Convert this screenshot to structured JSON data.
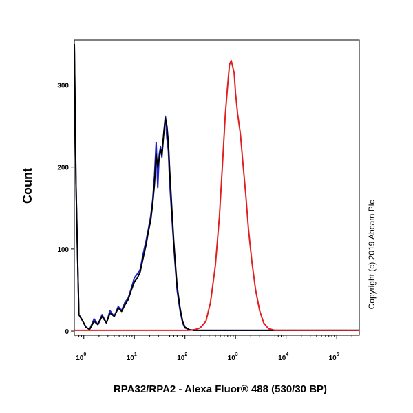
{
  "chart_data": {
    "type": "area",
    "title": "",
    "xlabel": "RPA32/RPA2 - Alexa Fluor® 488 (530/30 BP)",
    "ylabel": "Count",
    "x_scale": "log",
    "xlim": [
      0.65,
      280000
    ],
    "ylim": [
      -5,
      355
    ],
    "x_ticks": [
      {
        "base": "10",
        "exp": "0"
      },
      {
        "base": "10",
        "exp": "1"
      },
      {
        "base": "10",
        "exp": "2"
      },
      {
        "base": "10",
        "exp": "3"
      },
      {
        "base": "10",
        "exp": "4"
      },
      {
        "base": "10",
        "exp": "5"
      }
    ],
    "y_ticks": [
      "0",
      "100",
      "200",
      "300"
    ],
    "y_tick_values": [
      0,
      100,
      200,
      300
    ],
    "grid": false,
    "legend": null,
    "annotations": [
      "Copyright (c) 2019 Abcam Plc"
    ],
    "series": [
      {
        "color": "#1f22c8",
        "x": [
          0.65,
          0.7,
          0.8,
          0.9,
          1.1,
          1.3,
          1.6,
          1.9,
          2.3,
          2.8,
          3.3,
          4.0,
          4.8,
          5.6,
          6.5,
          7.5,
          8.5,
          10,
          11.5,
          13,
          15,
          17,
          19,
          21,
          23,
          25,
          27,
          29,
          31,
          33,
          35,
          38,
          41,
          44,
          47,
          50,
          55,
          60,
          65,
          70,
          80,
          90,
          100,
          120,
          150,
          200,
          500,
          2000,
          280000
        ],
        "y": [
          350,
          180,
          20,
          15,
          5,
          2,
          15,
          8,
          20,
          10,
          25,
          18,
          30,
          25,
          35,
          40,
          50,
          65,
          70,
          75,
          95,
          110,
          125,
          140,
          160,
          190,
          230,
          175,
          215,
          225,
          212,
          240,
          262,
          235,
          220,
          180,
          140,
          105,
          75,
          50,
          25,
          10,
          4,
          2,
          1,
          1,
          1,
          1,
          1
        ]
      },
      {
        "color": "#000000",
        "x": [
          0.65,
          0.7,
          0.8,
          0.9,
          1.1,
          1.3,
          1.6,
          1.9,
          2.3,
          2.8,
          3.3,
          4.0,
          4.8,
          5.6,
          6.5,
          7.5,
          8.5,
          10,
          11.5,
          13,
          15,
          17,
          19,
          21,
          23,
          25,
          27,
          29,
          31,
          33,
          35,
          38,
          41,
          44,
          47,
          50,
          55,
          60,
          65,
          70,
          80,
          90,
          100,
          120,
          150,
          200,
          500,
          2000,
          280000
        ],
        "y": [
          350,
          180,
          20,
          15,
          5,
          2,
          12,
          8,
          18,
          10,
          22,
          18,
          28,
          24,
          32,
          38,
          48,
          60,
          65,
          72,
          90,
          105,
          122,
          135,
          155,
          180,
          215,
          200,
          210,
          222,
          215,
          240,
          260,
          250,
          230,
          195,
          150,
          110,
          80,
          55,
          28,
          12,
          5,
          2,
          1,
          1,
          1,
          1,
          1
        ]
      },
      {
        "color": "#e02020",
        "x": [
          0.65,
          80,
          120,
          160,
          200,
          260,
          320,
          400,
          480,
          560,
          630,
          700,
          760,
          820,
          880,
          940,
          1000,
          1100,
          1250,
          1400,
          1600,
          1800,
          2100,
          2500,
          3000,
          3600,
          4500,
          6000,
          280000
        ],
        "y": [
          1,
          1,
          1,
          2,
          4,
          12,
          35,
          80,
          140,
          210,
          265,
          300,
          325,
          330,
          322,
          315,
          290,
          265,
          240,
          205,
          165,
          125,
          85,
          50,
          25,
          10,
          3,
          1,
          1
        ]
      }
    ]
  }
}
